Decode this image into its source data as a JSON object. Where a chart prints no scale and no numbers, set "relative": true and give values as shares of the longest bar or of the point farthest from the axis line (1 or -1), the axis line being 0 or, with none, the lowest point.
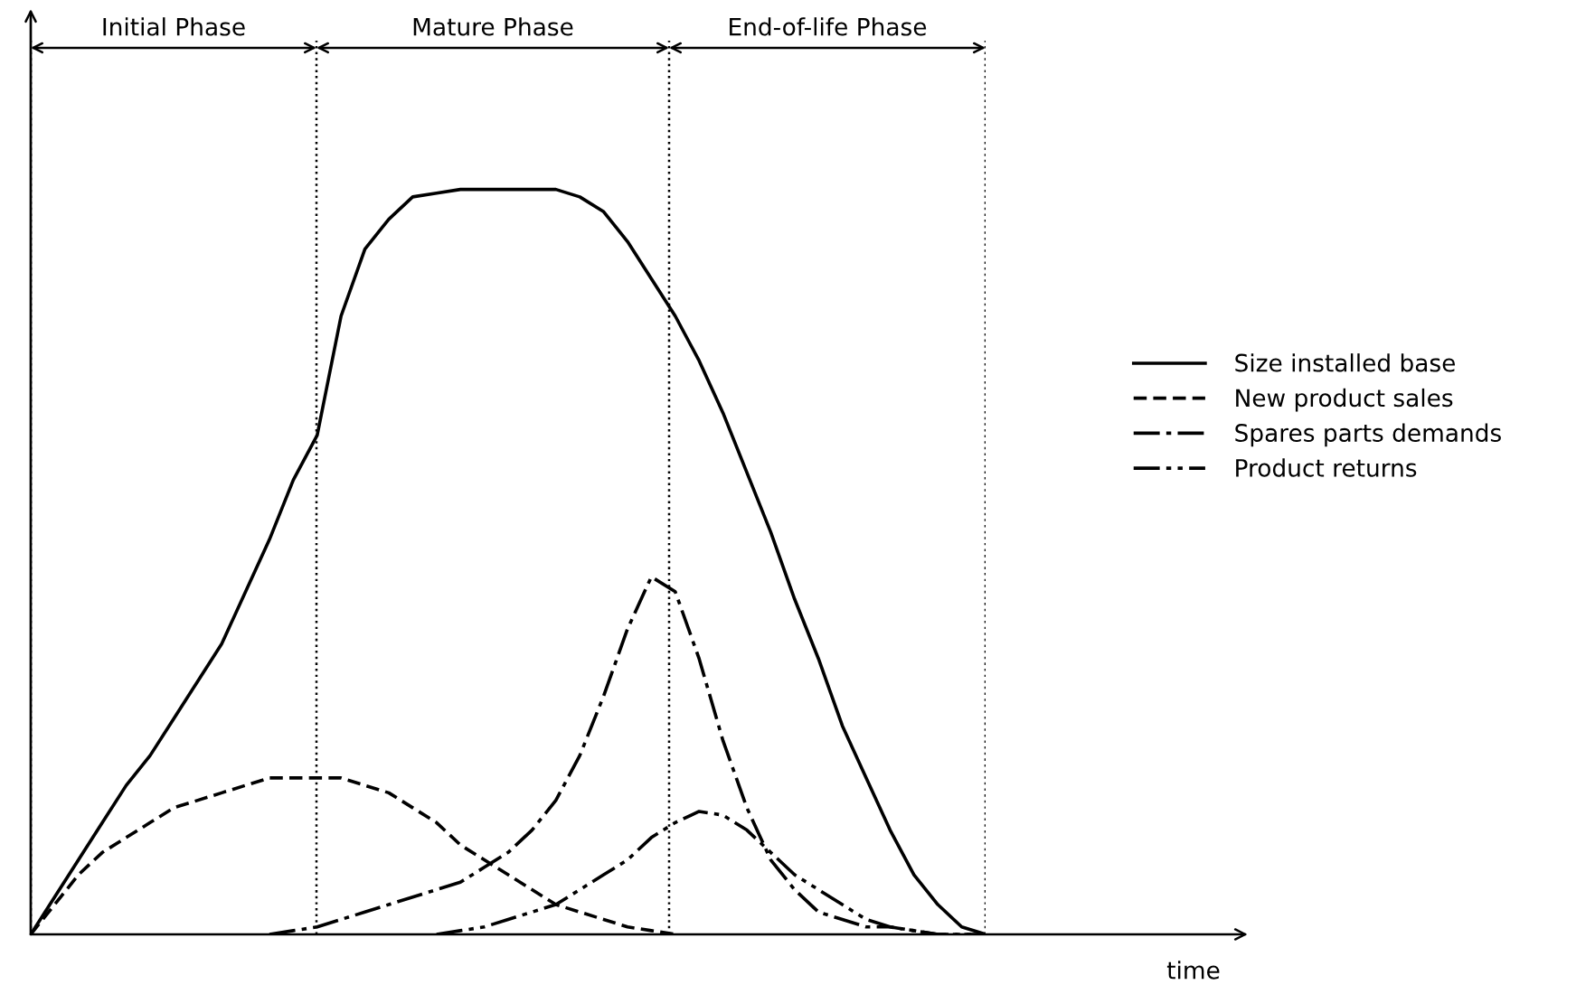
{
  "chart_data": {
    "type": "line",
    "relative": true,
    "legend": "right",
    "categories": [
      null,
      null,
      null,
      null,
      null,
      null,
      null,
      null,
      null,
      null,
      null,
      null,
      null,
      null,
      null,
      null,
      null,
      null,
      null,
      null,
      null,
      null,
      null,
      null,
      null,
      null,
      null,
      null,
      null,
      null,
      null,
      null,
      null,
      null,
      null,
      null,
      null,
      null,
      null,
      null,
      null
    ],
    "annotations": [
      "Initial Phase",
      "Mature Phase",
      "End-of-life Phase",
      "time"
    ],
    "series": [
      {
        "name": "Size installed base",
        "color": "#000000",
        "line_style": "solid",
        "values": [
          0,
          0.05,
          0.1,
          0.15,
          0.2,
          0.24,
          0.29,
          0.34,
          0.39,
          0.46,
          0.53,
          0.61,
          0.67,
          0.83,
          0.92,
          0.96,
          0.99,
          0.995,
          1,
          1,
          1,
          1,
          1,
          0.99,
          0.97,
          0.93,
          0.88,
          0.83,
          0.77,
          0.7,
          0.62,
          0.54,
          0.45,
          0.37,
          0.28,
          0.21,
          0.14,
          0.08,
          0.04,
          0.01,
          0
        ]
      },
      {
        "name": "New product sales",
        "color": "#000000",
        "line_style": "dashed",
        "values": [
          0,
          0.04,
          0.08,
          0.11,
          0.13,
          0.15,
          0.17,
          0.18,
          0.19,
          0.2,
          0.21,
          0.21,
          0.21,
          0.21,
          0.2,
          0.19,
          0.17,
          0.15,
          0.12,
          0.1,
          0.08,
          0.06,
          0.04,
          0.03,
          0.02,
          0.01,
          0.005,
          0,
          null,
          null,
          null,
          null,
          null,
          null,
          null,
          null,
          null,
          null,
          null,
          null,
          null
        ]
      },
      {
        "name": "Spares parts demands",
        "color": "#000000",
        "line_style": "dashdot",
        "values": [
          null,
          null,
          null,
          null,
          null,
          null,
          null,
          null,
          null,
          null,
          0,
          0.005,
          0.01,
          0.02,
          0.03,
          0.04,
          0.05,
          0.06,
          0.07,
          0.09,
          0.11,
          0.14,
          0.18,
          0.24,
          0.32,
          0.41,
          0.48,
          0.46,
          0.37,
          0.26,
          0.17,
          0.1,
          0.06,
          0.03,
          0.02,
          0.01,
          0.01,
          0.005,
          0,
          0,
          0
        ]
      },
      {
        "name": "Product returns",
        "color": "#000000",
        "line_style": "dashdotdot",
        "values": [
          null,
          null,
          null,
          null,
          null,
          null,
          null,
          null,
          null,
          null,
          null,
          null,
          null,
          null,
          null,
          null,
          null,
          0,
          0.005,
          0.01,
          0.02,
          0.03,
          0.04,
          0.06,
          0.08,
          0.1,
          0.13,
          0.15,
          0.165,
          0.16,
          0.14,
          0.11,
          0.08,
          0.06,
          0.04,
          0.02,
          0.01,
          0.005,
          0,
          0,
          0
        ]
      }
    ]
  }
}
